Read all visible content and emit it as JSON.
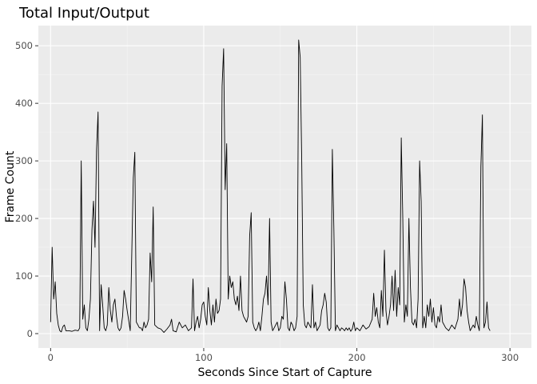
{
  "chart_data": {
    "type": "line",
    "title": "Total Input/Output",
    "xlabel": "Seconds Since Start of Capture",
    "ylabel": "Frame Count",
    "xlim": [
      -8,
      314
    ],
    "ylim": [
      -25,
      535
    ],
    "x_ticks": [
      0,
      100,
      200,
      300
    ],
    "y_ticks": [
      0,
      100,
      200,
      300,
      400,
      500
    ],
    "x_tick_labels": [
      "0",
      "100",
      "200",
      "300"
    ],
    "y_tick_labels": [
      "0",
      "100",
      "200",
      "300",
      "400",
      "500"
    ],
    "grid": true,
    "legend": "none",
    "series": [
      {
        "color": "#000000",
        "points": [
          [
            0,
            20
          ],
          [
            1,
            150
          ],
          [
            2,
            60
          ],
          [
            3,
            90
          ],
          [
            4,
            35
          ],
          [
            5,
            15
          ],
          [
            6,
            5
          ],
          [
            7,
            3
          ],
          [
            8,
            12
          ],
          [
            9,
            15
          ],
          [
            10,
            5
          ],
          [
            12,
            5
          ],
          [
            14,
            4
          ],
          [
            16,
            6
          ],
          [
            18,
            5
          ],
          [
            19,
            10
          ],
          [
            20,
            300
          ],
          [
            21,
            25
          ],
          [
            22,
            50
          ],
          [
            23,
            10
          ],
          [
            24,
            5
          ],
          [
            25,
            25
          ],
          [
            26,
            60
          ],
          [
            27,
            180
          ],
          [
            28,
            230
          ],
          [
            29,
            150
          ],
          [
            30,
            320
          ],
          [
            31,
            385
          ],
          [
            32,
            5
          ],
          [
            33,
            85
          ],
          [
            34,
            50
          ],
          [
            35,
            10
          ],
          [
            36,
            5
          ],
          [
            37,
            15
          ],
          [
            38,
            80
          ],
          [
            39,
            40
          ],
          [
            40,
            20
          ],
          [
            41,
            50
          ],
          [
            42,
            60
          ],
          [
            43,
            30
          ],
          [
            44,
            10
          ],
          [
            45,
            5
          ],
          [
            46,
            10
          ],
          [
            47,
            30
          ],
          [
            48,
            75
          ],
          [
            49,
            60
          ],
          [
            50,
            40
          ],
          [
            52,
            5
          ],
          [
            54,
            270
          ],
          [
            55,
            315
          ],
          [
            56,
            20
          ],
          [
            57,
            15
          ],
          [
            58,
            10
          ],
          [
            59,
            10
          ],
          [
            60,
            5
          ],
          [
            61,
            20
          ],
          [
            62,
            10
          ],
          [
            63,
            15
          ],
          [
            64,
            25
          ],
          [
            65,
            140
          ],
          [
            66,
            90
          ],
          [
            67,
            220
          ],
          [
            68,
            15
          ],
          [
            70,
            10
          ],
          [
            72,
            8
          ],
          [
            74,
            2
          ],
          [
            76,
            8
          ],
          [
            78,
            15
          ],
          [
            79,
            25
          ],
          [
            80,
            5
          ],
          [
            82,
            3
          ],
          [
            84,
            20
          ],
          [
            86,
            10
          ],
          [
            88,
            15
          ],
          [
            90,
            5
          ],
          [
            92,
            10
          ],
          [
            93,
            95
          ],
          [
            94,
            5
          ],
          [
            95,
            20
          ],
          [
            96,
            30
          ],
          [
            97,
            10
          ],
          [
            98,
            25
          ],
          [
            99,
            50
          ],
          [
            100,
            55
          ],
          [
            101,
            30
          ],
          [
            102,
            15
          ],
          [
            103,
            80
          ],
          [
            104,
            40
          ],
          [
            105,
            15
          ],
          [
            106,
            50
          ],
          [
            107,
            20
          ],
          [
            108,
            60
          ],
          [
            109,
            35
          ],
          [
            110,
            40
          ],
          [
            111,
            60
          ],
          [
            112,
            430
          ],
          [
            113,
            495
          ],
          [
            114,
            250
          ],
          [
            115,
            330
          ],
          [
            116,
            60
          ],
          [
            117,
            100
          ],
          [
            118,
            80
          ],
          [
            119,
            90
          ],
          [
            120,
            60
          ],
          [
            121,
            50
          ],
          [
            122,
            65
          ],
          [
            123,
            40
          ],
          [
            124,
            100
          ],
          [
            125,
            40
          ],
          [
            126,
            30
          ],
          [
            127,
            25
          ],
          [
            128,
            20
          ],
          [
            129,
            30
          ],
          [
            130,
            170
          ],
          [
            131,
            210
          ],
          [
            132,
            20
          ],
          [
            133,
            10
          ],
          [
            134,
            5
          ],
          [
            135,
            10
          ],
          [
            136,
            20
          ],
          [
            137,
            5
          ],
          [
            138,
            30
          ],
          [
            139,
            60
          ],
          [
            140,
            70
          ],
          [
            141,
            100
          ],
          [
            142,
            50
          ],
          [
            143,
            200
          ],
          [
            144,
            20
          ],
          [
            145,
            5
          ],
          [
            146,
            10
          ],
          [
            147,
            15
          ],
          [
            148,
            20
          ],
          [
            149,
            5
          ],
          [
            150,
            10
          ],
          [
            151,
            30
          ],
          [
            152,
            25
          ],
          [
            153,
            90
          ],
          [
            154,
            60
          ],
          [
            155,
            10
          ],
          [
            156,
            5
          ],
          [
            157,
            20
          ],
          [
            158,
            15
          ],
          [
            159,
            5
          ],
          [
            160,
            10
          ],
          [
            161,
            30
          ],
          [
            162,
            510
          ],
          [
            163,
            480
          ],
          [
            164,
            300
          ],
          [
            165,
            50
          ],
          [
            166,
            15
          ],
          [
            167,
            10
          ],
          [
            168,
            20
          ],
          [
            169,
            15
          ],
          [
            170,
            10
          ],
          [
            171,
            85
          ],
          [
            172,
            10
          ],
          [
            173,
            20
          ],
          [
            174,
            5
          ],
          [
            175,
            10
          ],
          [
            176,
            15
          ],
          [
            177,
            40
          ],
          [
            178,
            50
          ],
          [
            179,
            70
          ],
          [
            180,
            55
          ],
          [
            181,
            10
          ],
          [
            182,
            5
          ],
          [
            183,
            10
          ],
          [
            184,
            320
          ],
          [
            185,
            180
          ],
          [
            186,
            5
          ],
          [
            187,
            15
          ],
          [
            188,
            10
          ],
          [
            189,
            5
          ],
          [
            190,
            10
          ],
          [
            191,
            8
          ],
          [
            192,
            5
          ],
          [
            193,
            10
          ],
          [
            194,
            6
          ],
          [
            195,
            10
          ],
          [
            196,
            4
          ],
          [
            197,
            8
          ],
          [
            198,
            20
          ],
          [
            199,
            5
          ],
          [
            200,
            10
          ],
          [
            202,
            5
          ],
          [
            204,
            15
          ],
          [
            206,
            8
          ],
          [
            208,
            12
          ],
          [
            210,
            25
          ],
          [
            211,
            70
          ],
          [
            212,
            30
          ],
          [
            213,
            45
          ],
          [
            214,
            20
          ],
          [
            215,
            10
          ],
          [
            216,
            75
          ],
          [
            217,
            30
          ],
          [
            218,
            145
          ],
          [
            219,
            40
          ],
          [
            220,
            15
          ],
          [
            221,
            30
          ],
          [
            222,
            50
          ],
          [
            223,
            100
          ],
          [
            224,
            40
          ],
          [
            225,
            110
          ],
          [
            226,
            30
          ],
          [
            227,
            80
          ],
          [
            228,
            50
          ],
          [
            229,
            340
          ],
          [
            230,
            200
          ],
          [
            231,
            20
          ],
          [
            232,
            50
          ],
          [
            233,
            30
          ],
          [
            234,
            200
          ],
          [
            235,
            80
          ],
          [
            236,
            20
          ],
          [
            237,
            15
          ],
          [
            238,
            25
          ],
          [
            239,
            10
          ],
          [
            240,
            60
          ],
          [
            241,
            300
          ],
          [
            242,
            230
          ],
          [
            243,
            10
          ],
          [
            244,
            30
          ],
          [
            245,
            10
          ],
          [
            246,
            50
          ],
          [
            247,
            30
          ],
          [
            248,
            60
          ],
          [
            249,
            20
          ],
          [
            250,
            45
          ],
          [
            251,
            15
          ],
          [
            252,
            10
          ],
          [
            253,
            30
          ],
          [
            254,
            20
          ],
          [
            255,
            50
          ],
          [
            256,
            20
          ],
          [
            258,
            10
          ],
          [
            260,
            5
          ],
          [
            262,
            15
          ],
          [
            264,
            8
          ],
          [
            266,
            25
          ],
          [
            267,
            60
          ],
          [
            268,
            30
          ],
          [
            269,
            50
          ],
          [
            270,
            95
          ],
          [
            271,
            80
          ],
          [
            272,
            40
          ],
          [
            273,
            20
          ],
          [
            274,
            5
          ],
          [
            275,
            10
          ],
          [
            276,
            15
          ],
          [
            277,
            10
          ],
          [
            278,
            30
          ],
          [
            279,
            15
          ],
          [
            280,
            5
          ],
          [
            281,
            290
          ],
          [
            282,
            380
          ],
          [
            283,
            10
          ],
          [
            284,
            20
          ],
          [
            285,
            55
          ],
          [
            286,
            10
          ],
          [
            287,
            5
          ]
        ]
      }
    ]
  }
}
